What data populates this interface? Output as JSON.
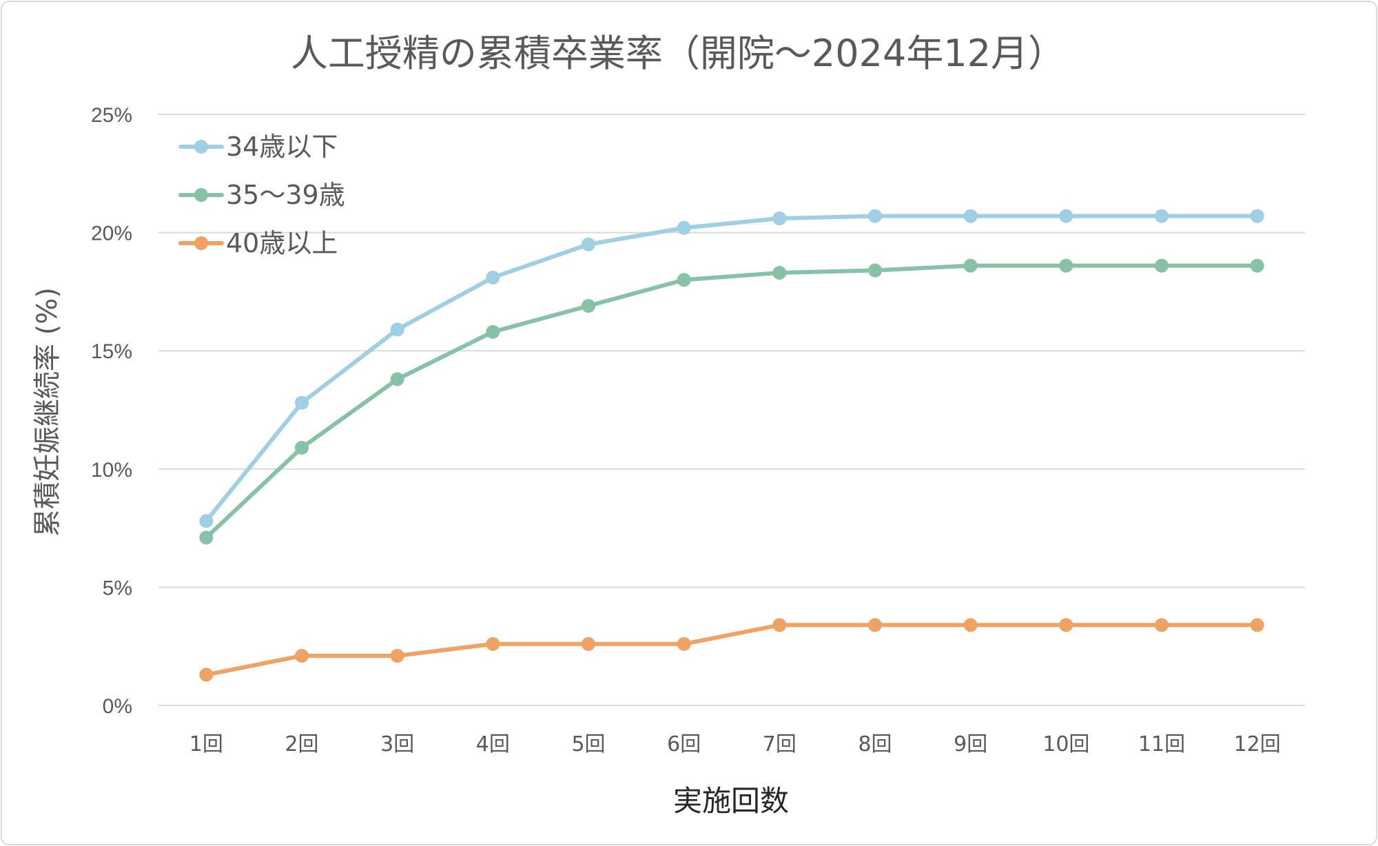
{
  "chart_data": {
    "type": "line",
    "title": "人工授精の累積卒業率（開院〜2024年12月）",
    "xlabel": "実施回数",
    "ylabel": "累積妊娠継続率 (%)",
    "categories": [
      "1回",
      "2回",
      "3回",
      "4回",
      "5回",
      "6回",
      "7回",
      "8回",
      "9回",
      "10回",
      "11回",
      "12回"
    ],
    "ylim": [
      0,
      25
    ],
    "yticks": [
      0,
      5,
      10,
      15,
      20,
      25
    ],
    "ytick_labels": [
      "0%",
      "5%",
      "10%",
      "15%",
      "20%",
      "25%"
    ],
    "grid": true,
    "legend_position": "top-left",
    "series": [
      {
        "name": "34歳以下",
        "color": "#9fcfe3",
        "values": [
          7.8,
          12.8,
          15.9,
          18.1,
          19.5,
          20.2,
          20.6,
          20.7,
          20.7,
          20.7,
          20.7,
          20.7
        ]
      },
      {
        "name": "35〜39歳",
        "color": "#86c2a5",
        "values": [
          7.1,
          10.9,
          13.8,
          15.8,
          16.9,
          18.0,
          18.3,
          18.4,
          18.6,
          18.6,
          18.6,
          18.6
        ]
      },
      {
        "name": "40歳以上",
        "color": "#f0a262",
        "values": [
          1.3,
          2.1,
          2.1,
          2.6,
          2.6,
          2.6,
          3.4,
          3.4,
          3.4,
          3.4,
          3.4,
          3.4
        ]
      }
    ]
  }
}
